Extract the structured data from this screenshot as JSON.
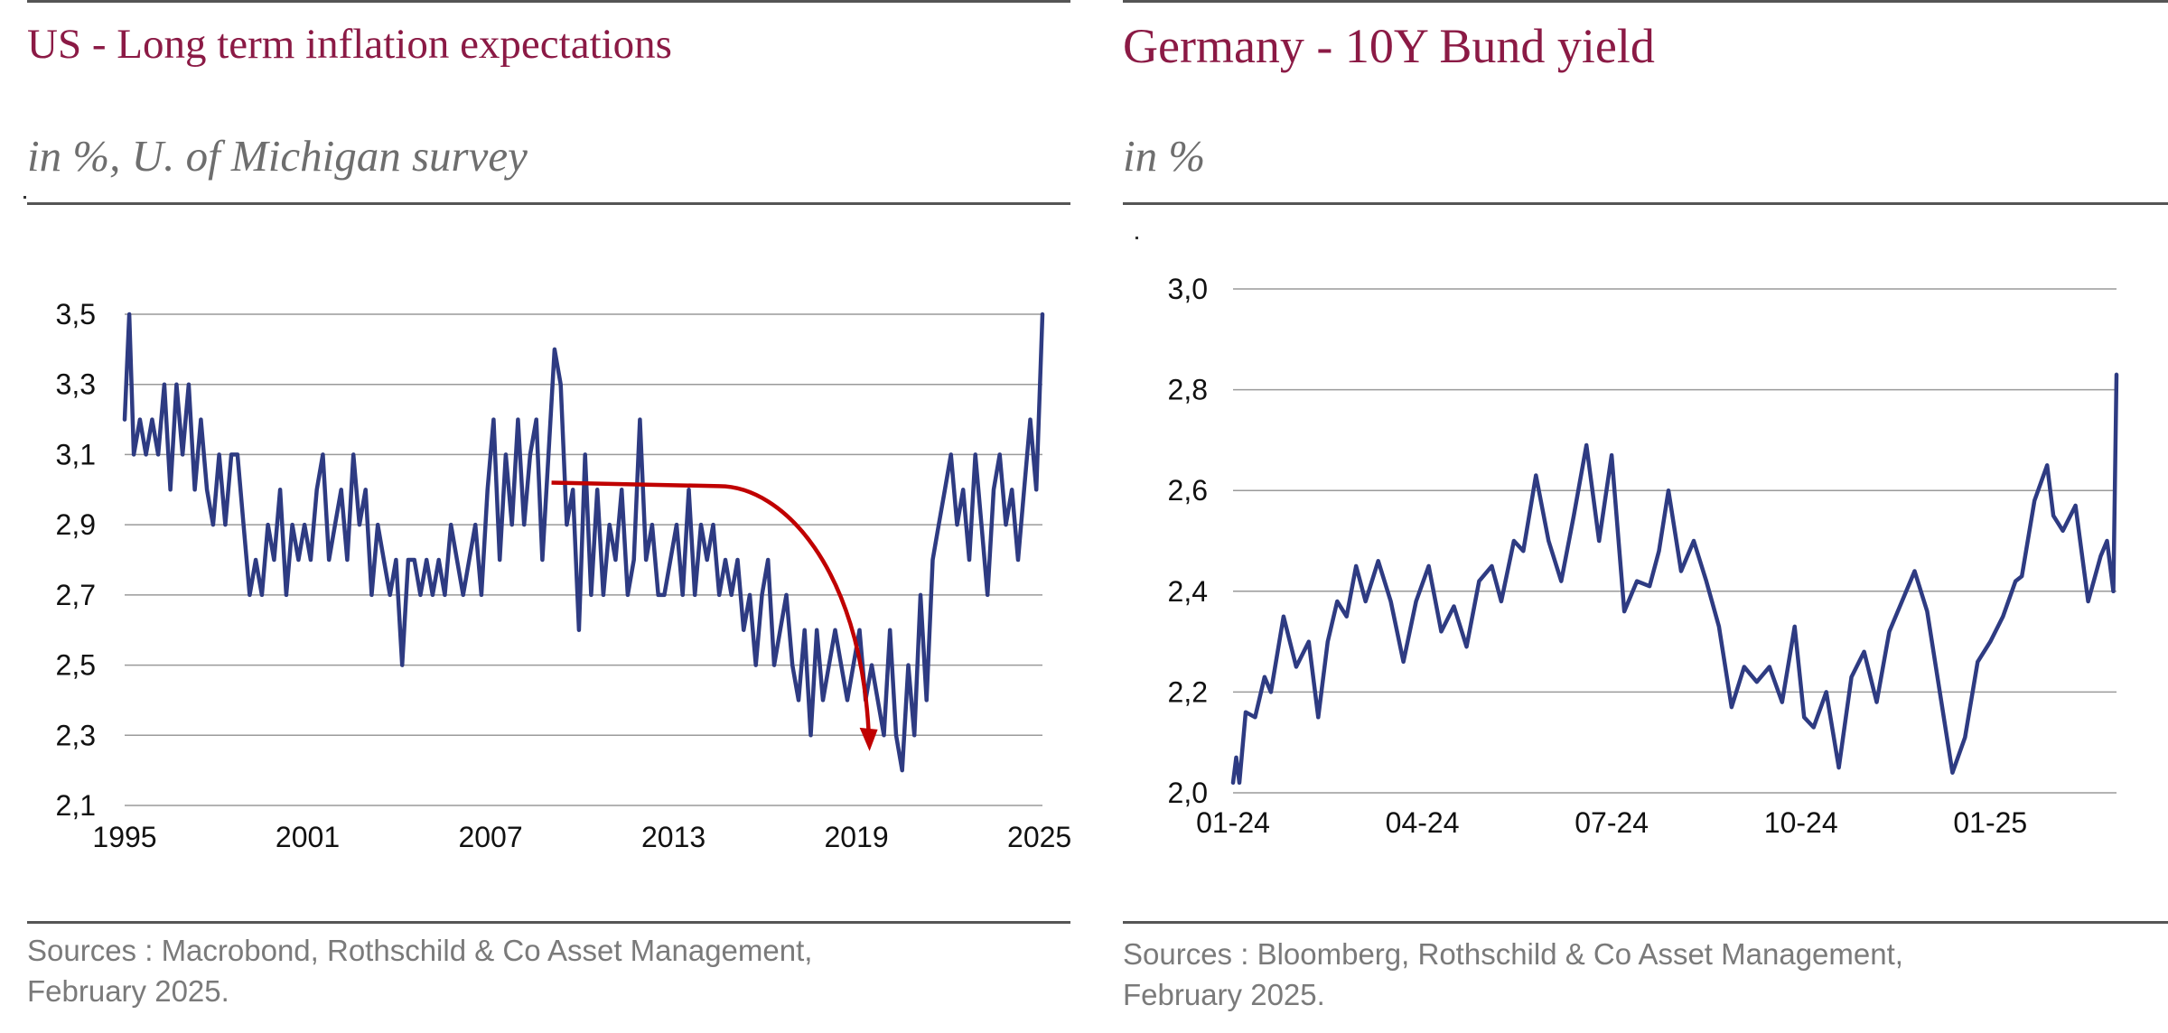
{
  "left_panel": {
    "title": "US - Long term inflation expectations",
    "subtitle": "in %, U. of Michigan survey",
    "source_line1": "Sources : Macrobond, Rothschild & Co Asset Management,",
    "source_line2": "February 2025."
  },
  "right_panel": {
    "title": "Germany - 10Y Bund yield",
    "subtitle": "in %",
    "source_line1": "Sources : Bloomberg, Rothschild & Co Asset Management,",
    "source_line2": "February 2025."
  },
  "colors": {
    "title": "#8b1a45",
    "series": "#2e3b82",
    "annotation_arrow": "#c00000",
    "grid": "#9a9a9a",
    "rule": "#555555"
  },
  "chart_data": [
    {
      "type": "line",
      "ylim": [
        2.1,
        3.5
      ],
      "yticks": [
        "3,5",
        "3,3",
        "3,1",
        "2,9",
        "2,7",
        "2,5",
        "2,3",
        "2,1"
      ],
      "ytick_values": [
        3.5,
        3.3,
        3.1,
        2.9,
        2.7,
        2.5,
        2.3,
        2.1
      ],
      "xlim": [
        1995.0,
        2025.1
      ],
      "xticks": [
        "1995",
        "2001",
        "2007",
        "2013",
        "2019",
        "2025"
      ],
      "xtick_values": [
        1995,
        2001,
        2007,
        2013,
        2019,
        2025
      ],
      "grid": true,
      "series": [
        {
          "x": [
            1995.0,
            1995.15,
            1995.3,
            1995.5,
            1995.7,
            1995.9,
            1996.1,
            1996.3,
            1996.5,
            1996.7,
            1996.9,
            1997.1,
            1997.3,
            1997.5,
            1997.7,
            1997.9,
            1998.1,
            1998.3,
            1998.5,
            1998.7,
            1998.9,
            1999.1,
            1999.3,
            1999.5,
            1999.7,
            1999.9,
            2000.1,
            2000.3,
            2000.5,
            2000.7,
            2000.9,
            2001.1,
            2001.3,
            2001.5,
            2001.7,
            2001.9,
            2002.1,
            2002.3,
            2002.5,
            2002.7,
            2002.9,
            2003.1,
            2003.3,
            2003.5,
            2003.7,
            2003.9,
            2004.1,
            2004.3,
            2004.5,
            2004.7,
            2004.9,
            2005.1,
            2005.3,
            2005.5,
            2005.7,
            2005.9,
            2006.1,
            2006.3,
            2006.5,
            2006.7,
            2006.9,
            2007.1,
            2007.3,
            2007.5,
            2007.7,
            2007.9,
            2008.1,
            2008.3,
            2008.5,
            2008.7,
            2008.9,
            2009.1,
            2009.3,
            2009.5,
            2009.7,
            2009.9,
            2010.1,
            2010.3,
            2010.5,
            2010.7,
            2010.9,
            2011.1,
            2011.3,
            2011.5,
            2011.7,
            2011.9,
            2012.1,
            2012.3,
            2012.5,
            2012.7,
            2012.9,
            2013.1,
            2013.3,
            2013.5,
            2013.7,
            2013.9,
            2014.1,
            2014.3,
            2014.5,
            2014.7,
            2014.9,
            2015.1,
            2015.3,
            2015.5,
            2015.7,
            2015.9,
            2016.1,
            2016.3,
            2016.5,
            2016.7,
            2016.9,
            2017.1,
            2017.3,
            2017.5,
            2017.7,
            2017.9,
            2018.1,
            2018.3,
            2018.5,
            2018.7,
            2018.9,
            2019.1,
            2019.3,
            2019.5,
            2019.7,
            2019.9,
            2020.1,
            2020.3,
            2020.5,
            2020.7,
            2020.9,
            2021.1,
            2021.3,
            2021.5,
            2021.7,
            2021.9,
            2022.1,
            2022.3,
            2022.5,
            2022.7,
            2022.9,
            2023.1,
            2023.3,
            2023.5,
            2023.7,
            2023.9,
            2024.1,
            2024.3,
            2024.5,
            2024.7,
            2024.9,
            2025.1
          ],
          "y": [
            3.2,
            3.5,
            3.1,
            3.2,
            3.1,
            3.2,
            3.1,
            3.3,
            3.0,
            3.3,
            3.1,
            3.3,
            3.0,
            3.2,
            3.0,
            2.9,
            3.1,
            2.9,
            3.1,
            3.1,
            2.9,
            2.7,
            2.8,
            2.7,
            2.9,
            2.8,
            3.0,
            2.7,
            2.9,
            2.8,
            2.9,
            2.8,
            3.0,
            3.1,
            2.8,
            2.9,
            3.0,
            2.8,
            3.1,
            2.9,
            3.0,
            2.7,
            2.9,
            2.8,
            2.7,
            2.8,
            2.5,
            2.8,
            2.8,
            2.7,
            2.8,
            2.7,
            2.8,
            2.7,
            2.9,
            2.8,
            2.7,
            2.8,
            2.9,
            2.7,
            3.0,
            3.2,
            2.8,
            3.1,
            2.9,
            3.2,
            2.9,
            3.1,
            3.2,
            2.8,
            3.1,
            3.4,
            3.3,
            2.9,
            3.0,
            2.6,
            3.1,
            2.7,
            3.0,
            2.7,
            2.9,
            2.8,
            3.0,
            2.7,
            2.8,
            3.2,
            2.8,
            2.9,
            2.7,
            2.7,
            2.8,
            2.9,
            2.7,
            3.0,
            2.7,
            2.9,
            2.8,
            2.9,
            2.7,
            2.8,
            2.7,
            2.8,
            2.6,
            2.7,
            2.5,
            2.7,
            2.8,
            2.5,
            2.6,
            2.7,
            2.5,
            2.4,
            2.6,
            2.3,
            2.6,
            2.4,
            2.5,
            2.6,
            2.5,
            2.4,
            2.5,
            2.6,
            2.4,
            2.5,
            2.4,
            2.3,
            2.6,
            2.3,
            2.2,
            2.5,
            2.3,
            2.7,
            2.4,
            2.8,
            2.9,
            3.0,
            3.1,
            2.9,
            3.0,
            2.8,
            3.1,
            2.9,
            2.7,
            3.0,
            3.1,
            2.9,
            3.0,
            2.8,
            3.0,
            3.2,
            3.0,
            3.5
          ]
        }
      ],
      "annotation": {
        "type": "arrow",
        "from": [
          2009.0,
          3.02
        ],
        "knee": [
          2014.5,
          3.01
        ],
        "to": [
          2019.4,
          2.26
        ]
      }
    },
    {
      "type": "line",
      "ylim": [
        2.0,
        3.0
      ],
      "yticks": [
        "3,0",
        "2,8",
        "2,6",
        "2,4",
        "2,2",
        "2,0"
      ],
      "ytick_values": [
        3.0,
        2.8,
        2.6,
        2.4,
        2.2,
        2.0
      ],
      "xlim": [
        0,
        14
      ],
      "xticks": [
        "01-24",
        "04-24",
        "07-24",
        "10-24",
        "01-25"
      ],
      "xtick_values": [
        0,
        3,
        6,
        9,
        12
      ],
      "grid": true,
      "series": [
        {
          "x": [
            0.0,
            0.05,
            0.1,
            0.2,
            0.35,
            0.5,
            0.6,
            0.8,
            1.0,
            1.2,
            1.35,
            1.5,
            1.65,
            1.8,
            1.95,
            2.1,
            2.3,
            2.5,
            2.7,
            2.9,
            3.1,
            3.3,
            3.5,
            3.7,
            3.9,
            4.1,
            4.25,
            4.45,
            4.6,
            4.8,
            5.0,
            5.2,
            5.4,
            5.6,
            5.8,
            6.0,
            6.2,
            6.4,
            6.6,
            6.75,
            6.9,
            7.1,
            7.3,
            7.5,
            7.7,
            7.9,
            8.1,
            8.3,
            8.5,
            8.7,
            8.9,
            9.05,
            9.2,
            9.4,
            9.6,
            9.8,
            10.0,
            10.2,
            10.4,
            10.6,
            10.8,
            11.0,
            11.2,
            11.4,
            11.6,
            11.8,
            12.0,
            12.2,
            12.4,
            12.5,
            12.7,
            12.9,
            13.0,
            13.15,
            13.35,
            13.55,
            13.75,
            13.85,
            13.95,
            14.0
          ],
          "y": [
            2.02,
            2.07,
            2.02,
            2.16,
            2.15,
            2.23,
            2.2,
            2.35,
            2.25,
            2.3,
            2.15,
            2.3,
            2.38,
            2.35,
            2.45,
            2.38,
            2.46,
            2.38,
            2.26,
            2.38,
            2.45,
            2.32,
            2.37,
            2.29,
            2.42,
            2.45,
            2.38,
            2.5,
            2.48,
            2.63,
            2.5,
            2.42,
            2.55,
            2.69,
            2.5,
            2.67,
            2.36,
            2.42,
            2.41,
            2.48,
            2.6,
            2.44,
            2.5,
            2.42,
            2.33,
            2.17,
            2.25,
            2.22,
            2.25,
            2.18,
            2.33,
            2.15,
            2.13,
            2.2,
            2.05,
            2.23,
            2.28,
            2.18,
            2.32,
            2.38,
            2.44,
            2.36,
            2.2,
            2.04,
            2.11,
            2.26,
            2.3,
            2.35,
            2.42,
            2.43,
            2.58,
            2.65,
            2.55,
            2.52,
            2.57,
            2.38,
            2.47,
            2.5,
            2.4,
            2.83
          ]
        }
      ]
    }
  ]
}
